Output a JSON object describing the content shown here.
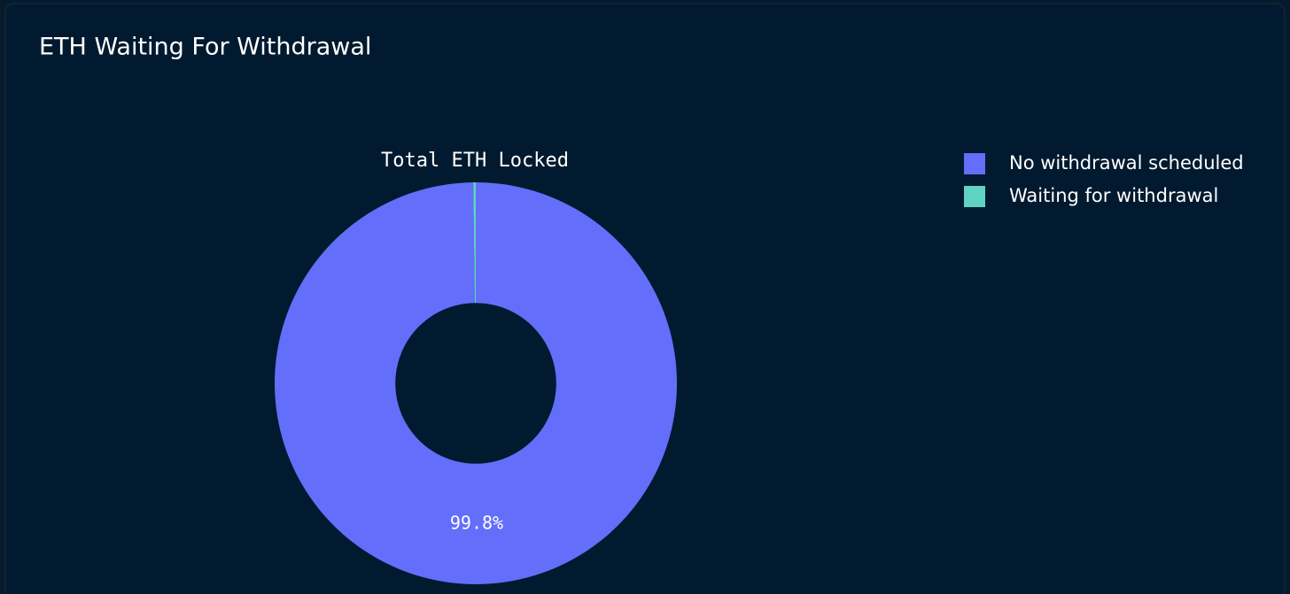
{
  "chart_data": {
    "type": "pie",
    "title": "ETH Waiting For Withdrawal",
    "subtitle": "Total ETH Locked",
    "categories": [
      "No withdrawal scheduled",
      "Waiting for withdrawal"
    ],
    "values": [
      99.8,
      0.2
    ],
    "value_labels": [
      "99.8%",
      null
    ],
    "colors": [
      "#636efa",
      "#5fd3c3"
    ],
    "hole": 0.4,
    "legend": "top-right"
  }
}
